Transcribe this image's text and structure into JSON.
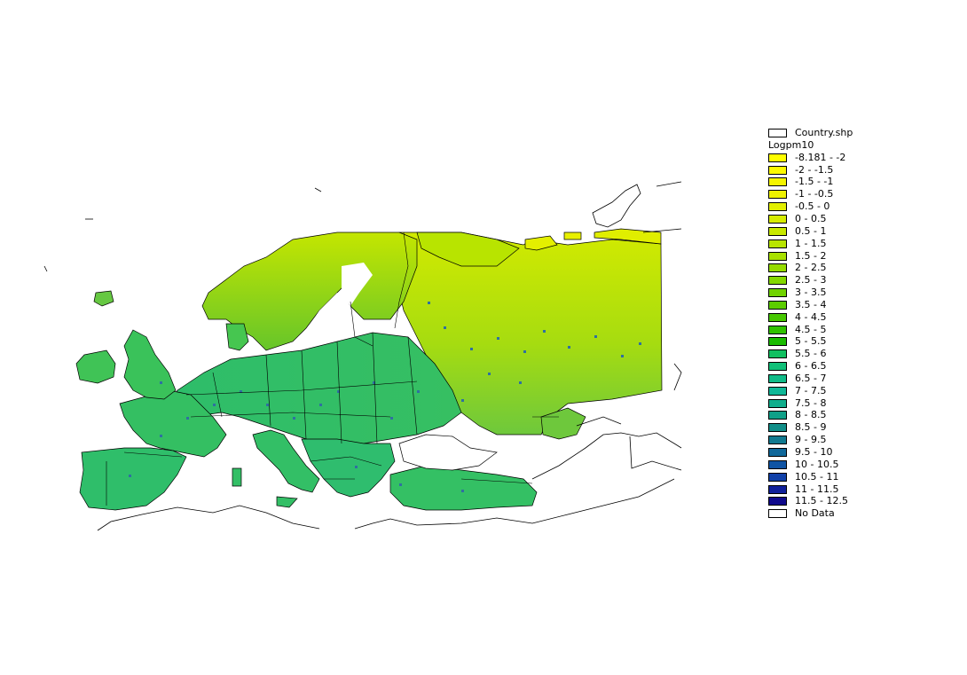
{
  "map": {
    "field": "Logpm10",
    "background_color": "#ffffff",
    "border_color": "#000000"
  },
  "legend": {
    "layer_label": "Country.shp",
    "field_label": "Logpm10",
    "classes": [
      {
        "label": "-8.181 - -2",
        "color": "#ffff00"
      },
      {
        "label": "-2 - -1.5",
        "color": "#fcfa00"
      },
      {
        "label": "-1.5 - -1",
        "color": "#f5f500"
      },
      {
        "label": "-1 - -0.5",
        "color": "#eef200"
      },
      {
        "label": "-0.5 - 0",
        "color": "#e2ef00"
      },
      {
        "label": "0 - 0.5",
        "color": "#d6ec00"
      },
      {
        "label": "0.5 - 1",
        "color": "#c8e900"
      },
      {
        "label": "1 - 1.5",
        "color": "#b8e500"
      },
      {
        "label": "1.5 - 2",
        "color": "#a8e100"
      },
      {
        "label": "2 - 2.5",
        "color": "#96dc00"
      },
      {
        "label": "2.5 - 3",
        "color": "#84d800"
      },
      {
        "label": "3 - 3.5",
        "color": "#70d300"
      },
      {
        "label": "3.5 - 4",
        "color": "#5ccd00"
      },
      {
        "label": "4 - 4.5",
        "color": "#46c800"
      },
      {
        "label": "4.5 - 5",
        "color": "#30c200"
      },
      {
        "label": "5 - 5.5",
        "color": "#1abc00"
      },
      {
        "label": "5.5 - 6",
        "color": "#10c060"
      },
      {
        "label": "6 - 6.5",
        "color": "#10c078"
      },
      {
        "label": "6.5 - 7",
        "color": "#10bb88"
      },
      {
        "label": "7 - 7.5",
        "color": "#10b898"
      },
      {
        "label": "7.5 - 8",
        "color": "#10ae8c"
      },
      {
        "label": "8 - 8.5",
        "color": "#10a088"
      },
      {
        "label": "8.5 - 9",
        "color": "#108e88"
      },
      {
        "label": "9 - 9.5",
        "color": "#107a90"
      },
      {
        "label": "9.5 - 10",
        "color": "#10689a"
      },
      {
        "label": "10 - 10.5",
        "color": "#1054a4"
      },
      {
        "label": "10.5 - 11",
        "color": "#1040a8"
      },
      {
        "label": "11 - 11.5",
        "color": "#10209a"
      },
      {
        "label": "11.5 - 12.5",
        "color": "#100a8c"
      },
      {
        "label": "No Data",
        "color": "#ffffff"
      }
    ]
  }
}
